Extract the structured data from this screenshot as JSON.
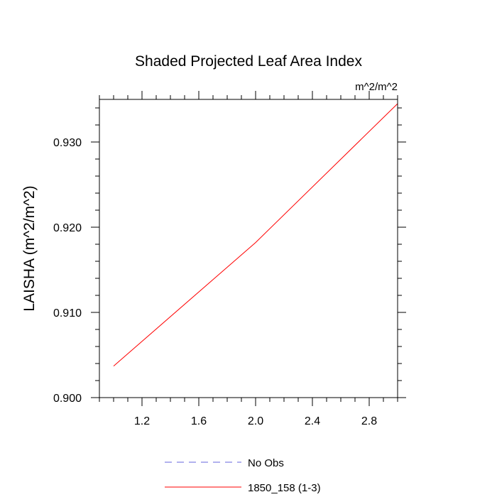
{
  "chart_data": {
    "type": "line",
    "title": "Shaded Projected Leaf Area Index",
    "units_label": "m^2/m^2",
    "ylabel": "LAISHA  (m^2/m^2)",
    "xlabel": "",
    "xlim": [
      0.9,
      3.0
    ],
    "ylim": [
      0.9,
      0.935
    ],
    "x_ticks": [
      1.2,
      1.6,
      2.0,
      2.4,
      2.8
    ],
    "x_tick_labels": [
      "1.2",
      "1.6",
      "2.0",
      "2.4",
      "2.8"
    ],
    "x_minor_step": 0.1,
    "y_ticks": [
      0.9,
      0.91,
      0.92,
      0.93
    ],
    "y_tick_labels": [
      "0.900",
      "0.910",
      "0.920",
      "0.930"
    ],
    "y_minor_step": 0.002,
    "grid": false,
    "legend_position": "bottom-center",
    "series": [
      {
        "name": "No Obs",
        "style": "dashed",
        "color": "#6666dd",
        "x": [],
        "y": []
      },
      {
        "name": "1850_158 (1-3)",
        "style": "solid",
        "color": "#ff0000",
        "x": [
          1.0,
          2.0,
          3.0
        ],
        "y": [
          0.9037,
          0.9182,
          0.9345
        ]
      }
    ]
  }
}
